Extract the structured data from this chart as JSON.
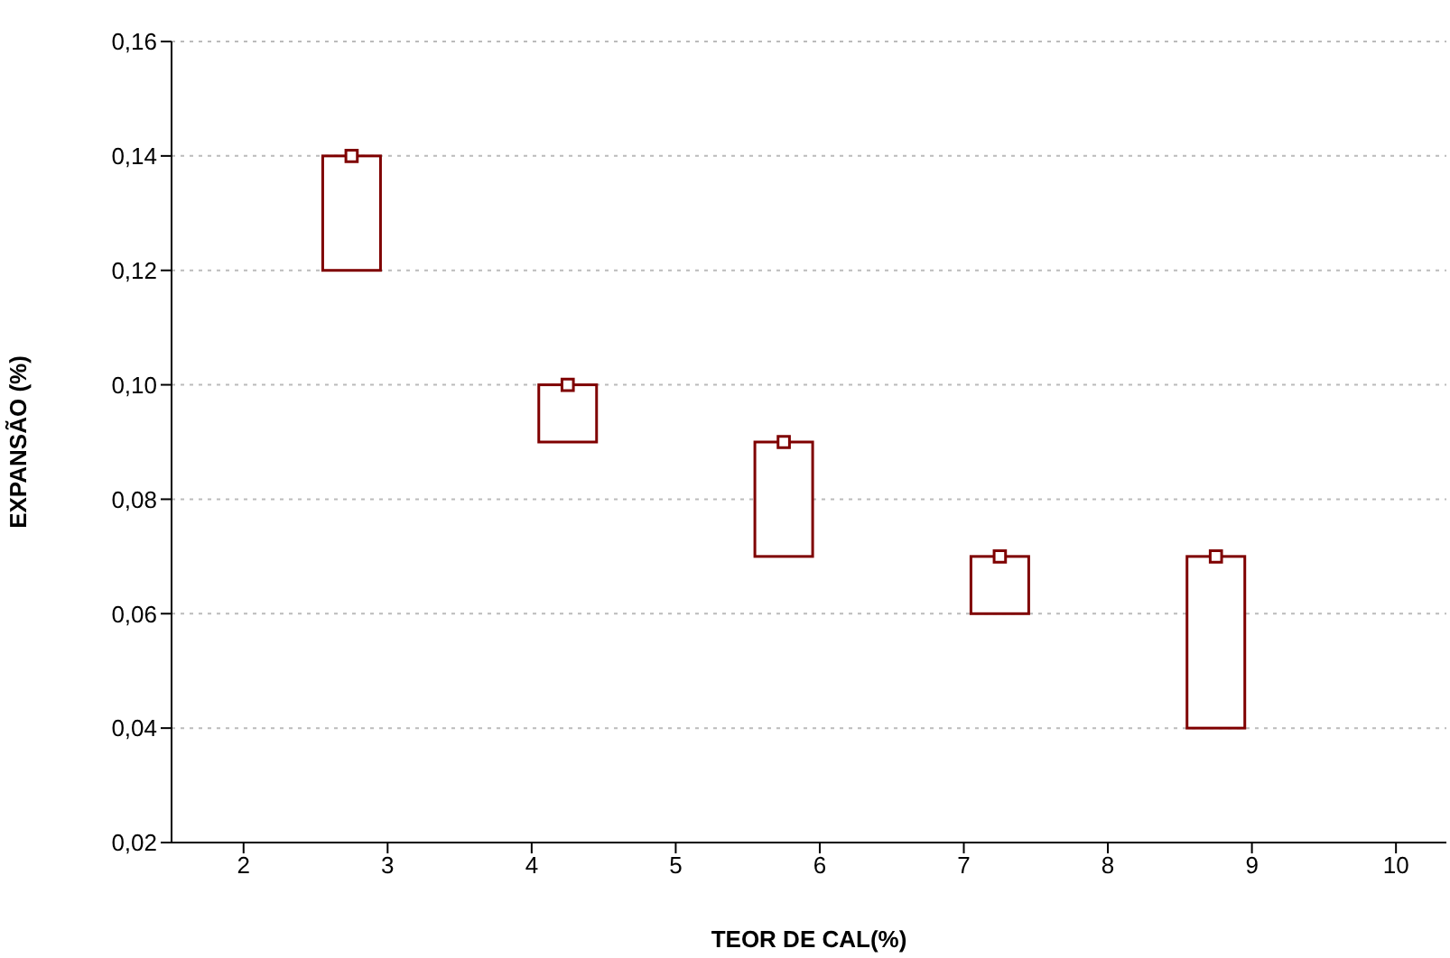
{
  "chart_data": {
    "type": "bar",
    "xlabel": "TEOR DE CAL(%)",
    "ylabel": "EXPANSÃO (%)",
    "x": [
      2.75,
      4.25,
      5.75,
      7.25,
      8.75
    ],
    "series": [
      {
        "color": "#7f0000",
        "base": [
          0.12,
          0.09,
          0.07,
          0.06,
          0.04
        ],
        "values": [
          0.02,
          0.01,
          0.02,
          0.01,
          0.03
        ]
      },
      {
        "type": "scatter",
        "color": "#7f0000",
        "marker": "square",
        "values": [
          0.14,
          0.1,
          0.09,
          0.07,
          0.07
        ]
      }
    ],
    "xlim": [
      1.5,
      10.35
    ],
    "xticks": [
      2,
      3,
      4,
      5,
      6,
      7,
      8,
      9,
      10
    ],
    "ylim": [
      0.02,
      0.16
    ],
    "yticks": [
      {
        "value": 0.02,
        "label": "0,02"
      },
      {
        "value": 0.04,
        "label": "0,04"
      },
      {
        "value": 0.06,
        "label": "0,06"
      },
      {
        "value": 0.08,
        "label": "0,08"
      },
      {
        "value": 0.1,
        "label": "0,10"
      },
      {
        "value": 0.12,
        "label": "0,12"
      },
      {
        "value": 0.14,
        "label": "0,14"
      },
      {
        "value": 0.16,
        "label": "0,16"
      }
    ],
    "grid": "y"
  }
}
